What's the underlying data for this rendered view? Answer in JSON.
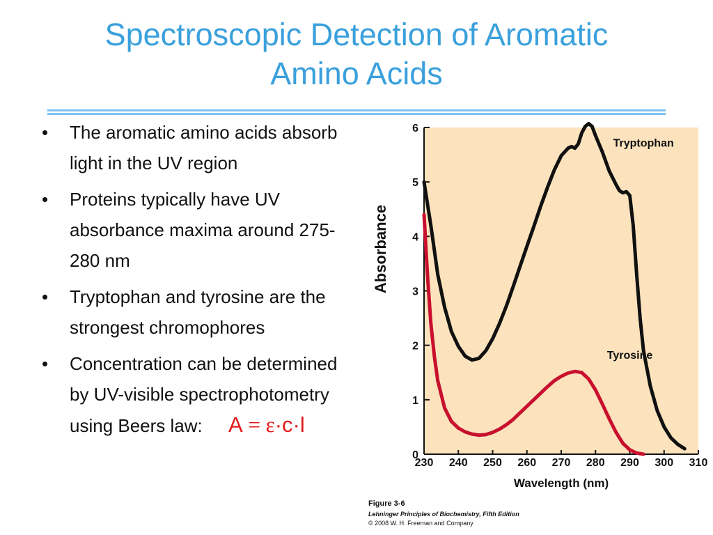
{
  "slide": {
    "title_line1": "Spectroscopic Detection of Aromatic",
    "title_line2": "Amino Acids",
    "bullets": [
      "The aromatic amino acids absorb light in the UV region",
      "Proteins typically have UV absorbance maxima around 275-280 nm",
      "Tryptophan and tyrosine are the strongest chromophores",
      "Concentration can be determined by UV-visible spectrophotometry using Beers law:"
    ],
    "bullet_symbol": "•",
    "formula": {
      "A": "A",
      "eq": "=",
      "epsilon": "ε",
      "rest": "·c·l"
    },
    "accent_color": "#3aa0dc",
    "formula_color": "#e21a1a"
  },
  "caption": {
    "figure": "Figure 3-6",
    "book": "Lehninger Principles of Biochemistry, Fifth Edition",
    "copyright": "© 2008 W. H. Freeman and Company"
  },
  "chart_data": {
    "type": "line",
    "title": "",
    "xlabel": "Wavelength (nm)",
    "ylabel": "Absorbance",
    "xlim": [
      230,
      310
    ],
    "ylim": [
      0,
      6
    ],
    "xticks": [
      230,
      240,
      250,
      260,
      270,
      280,
      290,
      300,
      310
    ],
    "yticks": [
      0,
      1,
      2,
      3,
      4,
      5,
      6
    ],
    "grid": false,
    "background": "#fce3bd",
    "series": [
      {
        "name": "Tryptophan",
        "color": "#111111",
        "points": [
          [
            230,
            5.0
          ],
          [
            232,
            4.2
          ],
          [
            234,
            3.3
          ],
          [
            236,
            2.7
          ],
          [
            238,
            2.25
          ],
          [
            240,
            1.98
          ],
          [
            242,
            1.8
          ],
          [
            244,
            1.73
          ],
          [
            246,
            1.76
          ],
          [
            248,
            1.9
          ],
          [
            250,
            2.12
          ],
          [
            252,
            2.4
          ],
          [
            254,
            2.72
          ],
          [
            256,
            3.08
          ],
          [
            258,
            3.45
          ],
          [
            260,
            3.82
          ],
          [
            262,
            4.18
          ],
          [
            264,
            4.55
          ],
          [
            266,
            4.9
          ],
          [
            268,
            5.22
          ],
          [
            270,
            5.48
          ],
          [
            272,
            5.62
          ],
          [
            273,
            5.65
          ],
          [
            274,
            5.62
          ],
          [
            275,
            5.7
          ],
          [
            276,
            5.9
          ],
          [
            277,
            6.02
          ],
          [
            278,
            6.07
          ],
          [
            279,
            6.02
          ],
          [
            280,
            5.85
          ],
          [
            282,
            5.55
          ],
          [
            284,
            5.2
          ],
          [
            286,
            4.95
          ],
          [
            287,
            4.84
          ],
          [
            288,
            4.8
          ],
          [
            289,
            4.82
          ],
          [
            290,
            4.75
          ],
          [
            291,
            4.2
          ],
          [
            292,
            3.3
          ],
          [
            293,
            2.5
          ],
          [
            294,
            1.9
          ],
          [
            296,
            1.25
          ],
          [
            298,
            0.8
          ],
          [
            300,
            0.5
          ],
          [
            302,
            0.3
          ],
          [
            304,
            0.18
          ],
          [
            306,
            0.1
          ]
        ]
      },
      {
        "name": "Tyrosine",
        "color": "#c8102e",
        "points": [
          [
            230,
            4.4
          ],
          [
            231,
            3.3
          ],
          [
            232,
            2.4
          ],
          [
            233,
            1.8
          ],
          [
            234,
            1.35
          ],
          [
            236,
            0.85
          ],
          [
            238,
            0.6
          ],
          [
            240,
            0.48
          ],
          [
            242,
            0.41
          ],
          [
            244,
            0.37
          ],
          [
            246,
            0.35
          ],
          [
            248,
            0.36
          ],
          [
            250,
            0.4
          ],
          [
            252,
            0.46
          ],
          [
            254,
            0.54
          ],
          [
            256,
            0.64
          ],
          [
            258,
            0.76
          ],
          [
            260,
            0.88
          ],
          [
            262,
            1.0
          ],
          [
            264,
            1.12
          ],
          [
            266,
            1.24
          ],
          [
            268,
            1.35
          ],
          [
            270,
            1.43
          ],
          [
            272,
            1.49
          ],
          [
            274,
            1.52
          ],
          [
            276,
            1.5
          ],
          [
            278,
            1.38
          ],
          [
            280,
            1.18
          ],
          [
            282,
            0.92
          ],
          [
            284,
            0.65
          ],
          [
            286,
            0.4
          ],
          [
            288,
            0.2
          ],
          [
            290,
            0.08
          ],
          [
            292,
            0.02
          ],
          [
            294,
            0.0
          ]
        ]
      }
    ],
    "annotations": [
      {
        "text": "Tryptophan",
        "x": 294,
        "y": 5.65
      },
      {
        "text": "Tyrosine",
        "x": 290,
        "y": 1.75
      }
    ]
  }
}
